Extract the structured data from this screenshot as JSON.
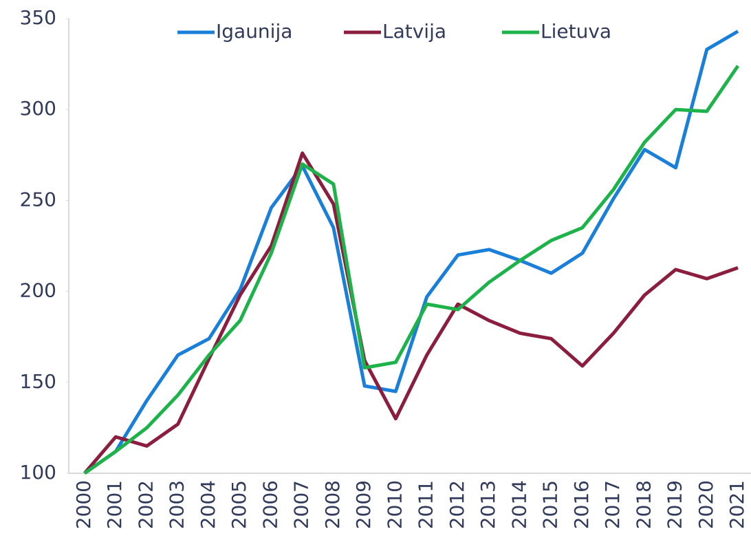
{
  "chart_data": {
    "type": "line",
    "categories": [
      "2000",
      "2001",
      "2002",
      "2003",
      "2004",
      "2005",
      "2006",
      "2007",
      "2008",
      "2009",
      "2010",
      "2011",
      "2012",
      "2013",
      "2014",
      "2015",
      "2016",
      "2017",
      "2018",
      "2019",
      "2020",
      "2021"
    ],
    "series": [
      {
        "name": "Igaunija",
        "color": "#1a7fd9",
        "values": [
          100,
          112,
          140,
          165,
          174,
          201,
          246,
          269,
          235,
          148,
          145,
          197,
          220,
          223,
          217,
          210,
          221,
          251,
          278,
          268,
          333,
          343
        ]
      },
      {
        "name": "Latvija",
        "color": "#8b1e3f",
        "values": [
          100,
          120,
          115,
          127,
          163,
          198,
          225,
          276,
          248,
          162,
          130,
          165,
          193,
          184,
          177,
          174,
          159,
          177,
          198,
          212,
          207,
          213
        ]
      },
      {
        "name": "Lietuva",
        "color": "#1db24a",
        "values": [
          100,
          112,
          125,
          143,
          165,
          184,
          221,
          270,
          259,
          158,
          161,
          193,
          190,
          205,
          217,
          228,
          235,
          256,
          282,
          300,
          299,
          324
        ]
      }
    ],
    "ylim": [
      100,
      350
    ],
    "yticks": [
      100,
      150,
      200,
      250,
      300,
      350
    ],
    "grid": false,
    "legend": "top"
  }
}
